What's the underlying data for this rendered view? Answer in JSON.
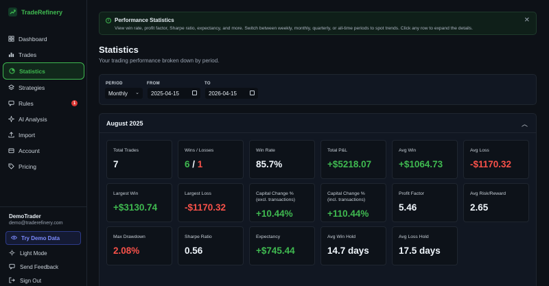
{
  "brand": {
    "name": "TradeRefinery"
  },
  "nav": {
    "items": [
      {
        "label": "Dashboard",
        "icon": "grid-icon"
      },
      {
        "label": "Trades",
        "icon": "bar-chart-icon"
      },
      {
        "label": "Statistics",
        "icon": "pie-chart-icon"
      },
      {
        "label": "Strategies",
        "icon": "layers-icon"
      },
      {
        "label": "Rules",
        "icon": "message-icon",
        "badge": "1"
      },
      {
        "label": "AI Analysis",
        "icon": "sparkle-icon"
      },
      {
        "label": "Import",
        "icon": "upload-icon"
      },
      {
        "label": "Account",
        "icon": "account-icon"
      },
      {
        "label": "Pricing",
        "icon": "tag-icon"
      }
    ]
  },
  "user": {
    "name": "DemoTrader",
    "email": "demo@traderefinery.com"
  },
  "footer": {
    "demo_label": "Try Demo Data",
    "light_mode": "Light Mode",
    "feedback": "Send Feedback",
    "sign_out": "Sign Out"
  },
  "banner": {
    "title": "Performance Statistics",
    "text": "View win rate, profit factor, Sharpe ratio, expectancy, and more. Switch between weekly, monthly, quarterly, or all-time periods to spot trends. Click any row to expand the details."
  },
  "page": {
    "title": "Statistics",
    "subtitle": "Your trading performance broken down by period."
  },
  "filters": {
    "period_label": "PERIOD",
    "period_value": "Monthly",
    "from_label": "FROM",
    "from_value": "2025-04-15",
    "to_label": "TO",
    "to_value": "2026-04-15"
  },
  "period": {
    "title": "August 2025",
    "cards": [
      {
        "label": "Total Trades",
        "value": "7"
      },
      {
        "label": "Wins / Losses",
        "wins": "6",
        "sep": " / ",
        "losses": "1"
      },
      {
        "label": "Win Rate",
        "value": "85.7%"
      },
      {
        "label": "Total P&L",
        "value": "+$5218.07",
        "tone": "green"
      },
      {
        "label": "Avg Win",
        "value": "+$1064.73",
        "tone": "green"
      },
      {
        "label": "Avg Loss",
        "value": "-$1170.32",
        "tone": "red"
      },
      {
        "label": "Largest Win",
        "value": "+$3130.74",
        "tone": "green"
      },
      {
        "label": "Largest Loss",
        "value": "-$1170.32",
        "tone": "red"
      },
      {
        "label": "Capital Change %\n(excl. transactions)",
        "value": "+10.44%",
        "tone": "green"
      },
      {
        "label": "Capital Change %\n(incl. transactions)",
        "value": "+110.44%",
        "tone": "green"
      },
      {
        "label": "Profit Factor",
        "value": "5.46"
      },
      {
        "label": "Avg Risk/Reward",
        "value": "2.65"
      },
      {
        "label": "Max Drawdown",
        "value": "2.08%",
        "tone": "red"
      },
      {
        "label": "Sharpe Ratio",
        "value": "0.56"
      },
      {
        "label": "Expectancy",
        "value": "+$745.44",
        "tone": "green"
      },
      {
        "label": "Avg Win Hold",
        "value": "14.7 days"
      },
      {
        "label": "Avg Loss Hold",
        "value": "17.5 days"
      }
    ]
  },
  "colors": {
    "accent": "#3fb950",
    "danger": "#f85149",
    "background": "#0d1117",
    "demo": "#7d8cff"
  }
}
